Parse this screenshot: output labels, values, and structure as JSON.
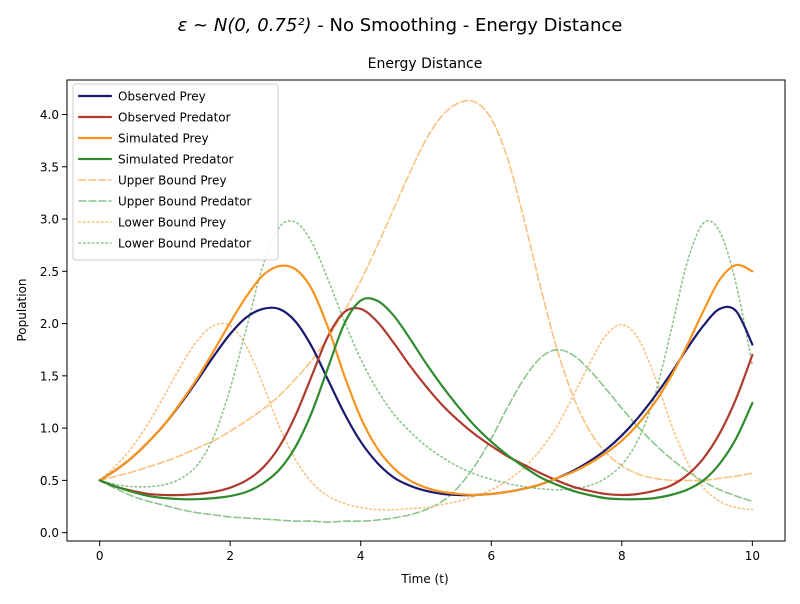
{
  "figure": {
    "suptitle_prefix": "ε ~ N(0, 0.75²)",
    "suptitle_suffix": " - No Smoothing - Energy Distance"
  },
  "chart_data": {
    "type": "line",
    "title": "Energy Distance",
    "xlabel": "Time (t)",
    "ylabel": "Population",
    "xlim": [
      -0.5,
      10.5
    ],
    "ylim": [
      -0.08,
      4.33
    ],
    "xticks": [
      0,
      2,
      4,
      6,
      8,
      10
    ],
    "xtick_labels": [
      "0",
      "2",
      "4",
      "6",
      "8",
      "10"
    ],
    "yticks": [
      0.0,
      0.5,
      1.0,
      1.5,
      2.0,
      2.5,
      3.0,
      3.5,
      4.0
    ],
    "ytick_labels": [
      "0.0",
      "0.5",
      "1.0",
      "1.5",
      "2.0",
      "2.5",
      "3.0",
      "3.5",
      "4.0"
    ],
    "grid": false,
    "legend_position": "upper-left",
    "x": [
      0,
      0.25,
      0.5,
      0.75,
      1,
      1.25,
      1.5,
      1.75,
      2,
      2.25,
      2.5,
      2.75,
      3,
      3.25,
      3.5,
      3.75,
      4,
      4.25,
      4.5,
      4.75,
      5,
      5.25,
      5.5,
      5.75,
      6,
      6.25,
      6.5,
      6.75,
      7,
      7.25,
      7.5,
      7.75,
      8,
      8.25,
      8.5,
      8.75,
      9,
      9.25,
      9.5,
      9.75,
      10
    ],
    "series": [
      {
        "name": "Observed Prey",
        "color": "#191970",
        "style": "solid",
        "width": 2.2,
        "values": [
          0.5,
          0.6,
          0.72,
          0.87,
          1.04,
          1.24,
          1.46,
          1.69,
          1.9,
          2.06,
          2.14,
          2.14,
          2.02,
          1.78,
          1.46,
          1.14,
          0.87,
          0.67,
          0.53,
          0.45,
          0.4,
          0.37,
          0.36,
          0.36,
          0.37,
          0.39,
          0.42,
          0.46,
          0.52,
          0.59,
          0.68,
          0.79,
          0.93,
          1.1,
          1.3,
          1.52,
          1.76,
          1.98,
          2.14,
          2.12,
          1.8
        ]
      },
      {
        "name": "Observed Predator",
        "color": "#b03a2e",
        "style": "solid",
        "width": 2.2,
        "values": [
          0.5,
          0.44,
          0.4,
          0.37,
          0.36,
          0.36,
          0.37,
          0.39,
          0.43,
          0.5,
          0.62,
          0.82,
          1.12,
          1.5,
          1.88,
          2.11,
          2.14,
          2.02,
          1.82,
          1.6,
          1.4,
          1.22,
          1.07,
          0.94,
          0.83,
          0.73,
          0.65,
          0.57,
          0.5,
          0.44,
          0.4,
          0.37,
          0.36,
          0.37,
          0.4,
          0.45,
          0.55,
          0.71,
          0.95,
          1.28,
          1.7
        ]
      },
      {
        "name": "Simulated Prey",
        "color": "#f7941d",
        "style": "solid",
        "width": 2.2,
        "values": [
          0.5,
          0.6,
          0.72,
          0.87,
          1.04,
          1.25,
          1.48,
          1.74,
          2.01,
          2.26,
          2.46,
          2.55,
          2.52,
          2.33,
          1.96,
          1.5,
          1.1,
          0.81,
          0.62,
          0.5,
          0.43,
          0.39,
          0.37,
          0.36,
          0.37,
          0.39,
          0.42,
          0.46,
          0.52,
          0.58,
          0.66,
          0.76,
          0.88,
          1.04,
          1.24,
          1.49,
          1.79,
          2.12,
          2.42,
          2.56,
          2.5
        ]
      },
      {
        "name": "Simulated Predator",
        "color": "#2e8b2e",
        "style": "solid",
        "width": 2.2,
        "values": [
          0.5,
          0.44,
          0.39,
          0.35,
          0.33,
          0.32,
          0.32,
          0.33,
          0.35,
          0.39,
          0.47,
          0.6,
          0.82,
          1.15,
          1.58,
          2.0,
          2.22,
          2.22,
          2.08,
          1.86,
          1.62,
          1.4,
          1.2,
          1.02,
          0.87,
          0.74,
          0.63,
          0.53,
          0.46,
          0.4,
          0.36,
          0.33,
          0.32,
          0.32,
          0.33,
          0.36,
          0.41,
          0.5,
          0.66,
          0.9,
          1.24
        ]
      },
      {
        "name": "Upper Bound Prey",
        "color": "#f9c27e",
        "style": "dashed",
        "width": 1.6,
        "values": [
          0.5,
          0.54,
          0.58,
          0.63,
          0.68,
          0.74,
          0.81,
          0.88,
          0.97,
          1.07,
          1.18,
          1.31,
          1.47,
          1.65,
          1.87,
          2.12,
          2.41,
          2.74,
          3.09,
          3.44,
          3.76,
          3.99,
          4.11,
          4.12,
          3.96,
          3.58,
          3.0,
          2.36,
          1.77,
          1.31,
          0.98,
          0.77,
          0.64,
          0.56,
          0.52,
          0.5,
          0.5,
          0.5,
          0.52,
          0.54,
          0.57
        ]
      },
      {
        "name": "Upper Bound Predator",
        "color": "#8cc48c",
        "style": "dashed",
        "width": 1.6,
        "values": [
          0.5,
          0.42,
          0.35,
          0.3,
          0.26,
          0.22,
          0.19,
          0.17,
          0.15,
          0.14,
          0.13,
          0.12,
          0.11,
          0.11,
          0.1,
          0.11,
          0.11,
          0.12,
          0.14,
          0.17,
          0.22,
          0.3,
          0.44,
          0.64,
          0.9,
          1.2,
          1.47,
          1.67,
          1.75,
          1.7,
          1.56,
          1.38,
          1.19,
          1.01,
          0.85,
          0.71,
          0.59,
          0.49,
          0.41,
          0.35,
          0.3
        ]
      },
      {
        "name": "Lower Bound Prey",
        "color": "#f9c27e",
        "style": "dotted",
        "width": 1.6,
        "values": [
          0.5,
          0.64,
          0.82,
          1.05,
          1.32,
          1.6,
          1.84,
          1.98,
          1.98,
          1.78,
          1.42,
          1.02,
          0.7,
          0.48,
          0.35,
          0.28,
          0.24,
          0.22,
          0.22,
          0.23,
          0.24,
          0.27,
          0.3,
          0.35,
          0.41,
          0.5,
          0.62,
          0.79,
          1.01,
          1.3,
          1.61,
          1.88,
          1.99,
          1.86,
          1.5,
          1.05,
          0.68,
          0.43,
          0.3,
          0.24,
          0.22
        ]
      },
      {
        "name": "Lower Bound Predator",
        "color": "#8cc48c",
        "style": "dotted",
        "width": 1.6,
        "values": [
          0.5,
          0.46,
          0.44,
          0.44,
          0.46,
          0.52,
          0.65,
          0.92,
          1.38,
          1.96,
          2.55,
          2.92,
          2.97,
          2.78,
          2.42,
          2.02,
          1.66,
          1.37,
          1.14,
          0.97,
          0.83,
          0.72,
          0.63,
          0.56,
          0.51,
          0.47,
          0.44,
          0.42,
          0.41,
          0.42,
          0.45,
          0.52,
          0.65,
          0.89,
          1.3,
          1.92,
          2.58,
          2.96,
          2.88,
          2.38,
          1.6
        ]
      }
    ]
  }
}
